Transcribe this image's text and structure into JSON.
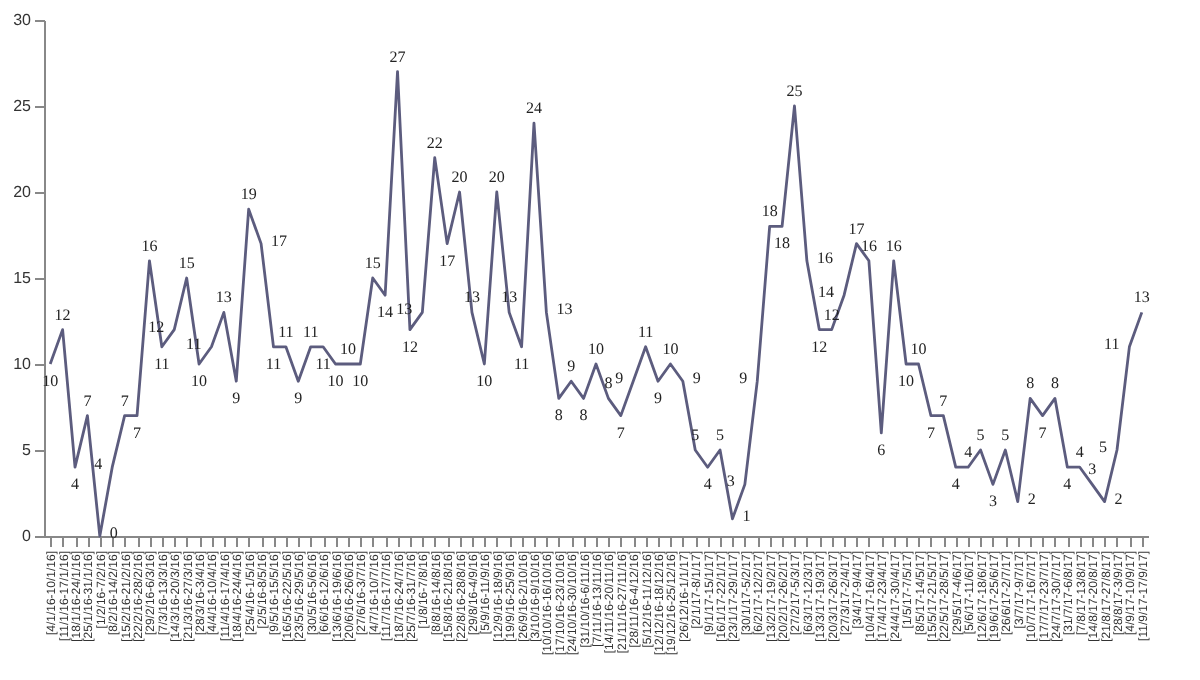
{
  "chart_data": {
    "type": "line",
    "color": "#5c5c7e",
    "data_labels": true,
    "ylim": [
      0,
      30
    ],
    "yticks": [
      0,
      5,
      10,
      15,
      20,
      25,
      30
    ],
    "categories": [
      "[4/1/16-10/1/16]",
      "[11/1/16-17/1/16]",
      "[18/1/16-24/1/16]",
      "[25/1/16-31/1/16]",
      "[1/2/16-7/2/16]",
      "[8/2/16-14/2/16]",
      "[15/2/16-21/2/16]",
      "[22/2/16-28/2/16]",
      "[29/2/16-6/3/16]",
      "[7/3/16-13/3/16]",
      "[14/3/16-20/3/16]",
      "[21/3/16-27/3/16]",
      "[28/3/16-3/4/16]",
      "[4/4/16-10/4/16]",
      "[11/4/16-17/4/16]",
      "[18/4/16-24/4/16]",
      "[25/4/16-1/5/16]",
      "[2/5/16-8/5/16]",
      "[9/5/16-15/5/16]",
      "[16/5/16-22/5/16]",
      "[23/5/16-29/5/16]",
      "[30/5/16-5/6/16]",
      "[6/6/16-12/6/16]",
      "[13/6/16-19/6/16]",
      "[20/6/16-26/6/16]",
      "[27/6/16-3/7/16]",
      "[4/7/16-10/7/16]",
      "[11/7/16-17/7/16]",
      "[18/7/16-24/7/16]",
      "[25/7/16-31/7/16]",
      "[1/8/16-7/8/16]",
      "[8/8/16-14/8/16]",
      "[15/8/16-21/8/16]",
      "[22/8/16-28/8/16]",
      "[29/8/16-4/9/16]",
      "[5/9/16-11/9/16]",
      "[12/9/16-18/9/16]",
      "[19/9/16-25/9/16]",
      "[26/9/16-2/10/16]",
      "[3/10/16-9/10/16]",
      "[10/10/16-16/10/16]",
      "[17/10/16-23/10/16]",
      "[24/10/16-30/10/16]",
      "[31/10/16-6/11/16]",
      "[7/11/16-13/11/16]",
      "[14/11/16-20/11/16]",
      "[21/11/16-27/11/16]",
      "[28/11/16-4/12/16]",
      "[5/12/16-11/12/16]",
      "[12/12/16-18/12/16]",
      "[19/12/16-25/12/16]",
      "[26/12/16-1/1/17]",
      "[2/1/17-8/1/17]",
      "[9/1/17-15/1/17]",
      "[16/1/17-22/1/17]",
      "[23/1/17-29/1/17]",
      "[30/1/17-5/2/17]",
      "[6/2/17-12/2/17]",
      "[13/2/17-19/2/17]",
      "[20/2/17-26/2/17]",
      "[27/2/17-5/3/17]",
      "[6/3/17-12/3/17]",
      "[13/3/17-19/3/17]",
      "[20/3/17-26/3/17]",
      "[27/3/17-2/4/17]",
      "[3/4/17-9/4/17]",
      "[10/4/17-16/4/17]",
      "[17/4/17-23/4/17]",
      "[24/4/17-30/4/17]",
      "[1/5/17-7/5/17]",
      "[8/5/17-14/5/17]",
      "[15/5/17-21/5/17]",
      "[22/5/17-28/5/17]",
      "[29/5/17-4/6/17]",
      "[5/6/17-11/6/17]",
      "[12/6/17-18/6/17]",
      "[19/6/17-25/6/17]",
      "[26/6/17-2/7/17]",
      "[3/7/17-9/7/17]",
      "[10/7/17-16/7/17]",
      "[17/7/17-23/7/17]",
      "[24/7/17-30/7/17]",
      "[31/7/17-6/8/17]",
      "[7/8/17-13/8/17]",
      "[14/8/17-20/8/17]",
      "[21/8/17-27/8/17]",
      "[28/8/17-3/9/17]",
      "[4/9/17-10/9/17]",
      "[11/9/17-17/9/17]"
    ],
    "values": [
      10,
      12,
      4,
      7,
      0,
      4,
      7,
      7,
      16,
      11,
      12,
      15,
      10,
      11,
      13,
      9,
      19,
      17,
      11,
      11,
      9,
      11,
      11,
      10,
      10,
      10,
      15,
      14,
      27,
      12,
      13,
      22,
      17,
      20,
      13,
      10,
      20,
      13,
      11,
      24,
      13,
      8,
      9,
      8,
      10,
      8,
      7,
      9,
      11,
      9,
      10,
      9,
      5,
      4,
      5,
      1,
      3,
      9,
      18,
      18,
      25,
      16,
      12,
      12,
      14,
      17,
      16,
      6,
      16,
      10,
      10,
      7,
      7,
      4,
      4,
      5,
      3,
      5,
      2,
      8,
      7,
      8,
      4,
      4,
      3,
      2,
      5,
      11,
      13
    ]
  }
}
